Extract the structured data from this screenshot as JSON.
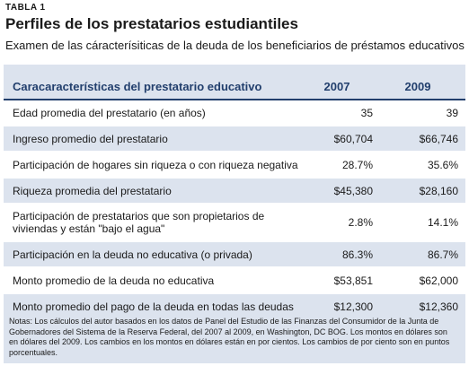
{
  "header": {
    "label": "TABLA 1",
    "title": "Perfiles de los prestatarios estudiantiles",
    "subtitle": "Examen de las cáracterísiticas de la deuda de los beneficiarios de préstamos educativos"
  },
  "table": {
    "columns": [
      "Caracaracterísticas del prestatario educativo",
      "2007",
      "2009"
    ],
    "rows": [
      [
        "Edad promedia del prestatario (en años)",
        "35",
        "39"
      ],
      [
        "Ingreso promedio del prestatario",
        "$60,704",
        "$66,746"
      ],
      [
        "Participación de hogares sin riqueza o con riqueza negativa",
        "28.7%",
        "35.6%"
      ],
      [
        "Riqueza promedia del prestatario",
        "$45,380",
        "$28,160"
      ],
      [
        "Participación de prestatarios que son propietarios de viviendas y están \"bajo el agua\"",
        "2.8%",
        "14.1%"
      ],
      [
        "Participación en la deuda no educativa (o privada)",
        "86.3%",
        "86.7%"
      ],
      [
        "Monto promedio de la deuda no educativa",
        "$53,851",
        "$62,000"
      ],
      [
        "Monto promedio del pago de la deuda en todas las deudas",
        "$12,300",
        "$12,360"
      ]
    ]
  },
  "notes": "Notas: Los cálculos del autor basados en los datos de Panel del Estudio de las Finanzas del Consumidor de la Junta de Gobernadores del Sistema de la Reserva Federal, del 2007 al 2009, en Washington, DC BOG. Los montos en dólares son en dólares del 2009. Los cambios en los montos en dólares están en por cientos. Los cambios de por ciento son en puntos porcentuales."
}
